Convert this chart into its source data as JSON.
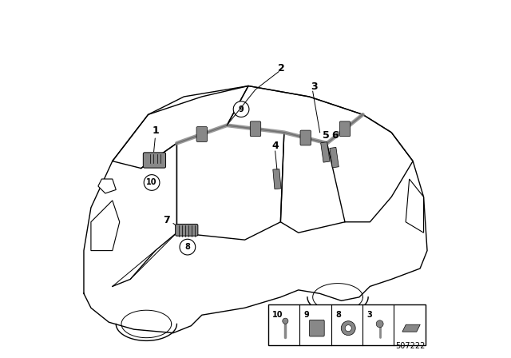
{
  "bg_color": "#ffffff",
  "line_color": "#000000",
  "part_color": "#888888",
  "part_color_dark": "#555555",
  "fig_width": 6.4,
  "fig_height": 4.48,
  "dpi": 100,
  "diagram_number": "507222"
}
